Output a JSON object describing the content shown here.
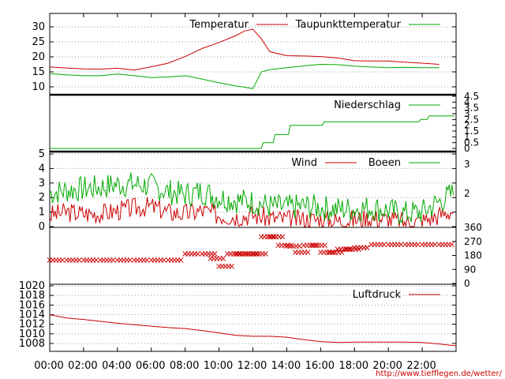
{
  "chart_data": [
    {
      "type": "line",
      "panel": "temperature",
      "ylim": [
        7.5,
        32
      ],
      "yticks": [
        "10",
        "15",
        "20",
        "25",
        "30"
      ],
      "grid": true,
      "legend_position": "top",
      "series": [
        {
          "name": "Temperatur",
          "color": "#cc0000",
          "x": [
            0,
            1,
            2,
            3,
            4,
            5,
            6,
            7,
            8,
            9,
            10,
            11,
            11.5,
            12,
            12.5,
            13,
            14,
            15,
            16,
            17,
            18,
            19,
            20,
            21,
            22,
            23
          ],
          "values": [
            16.6,
            16.3,
            16.0,
            15.9,
            16.2,
            15.6,
            16.7,
            17.9,
            20.1,
            22.8,
            24.8,
            27.1,
            28.6,
            29.2,
            26.0,
            21.7,
            20.4,
            20.3,
            20.1,
            19.6,
            18.7,
            18.6,
            18.6,
            18.2,
            17.9,
            17.5
          ]
        },
        {
          "name": "Taupunkttemperatur",
          "color": "#00aa00",
          "x": [
            0,
            1,
            2,
            3,
            4,
            5,
            6,
            7,
            8,
            9,
            10,
            11,
            11.5,
            12,
            12.5,
            13,
            14,
            15,
            16,
            17,
            18,
            19,
            20,
            21,
            22,
            23
          ],
          "values": [
            14.4,
            14.0,
            13.7,
            13.7,
            14.3,
            13.7,
            13.1,
            13.3,
            13.7,
            12.6,
            11.4,
            10.3,
            9.9,
            9.4,
            15.0,
            15.7,
            16.4,
            17.0,
            17.5,
            17.4,
            16.9,
            16.6,
            16.4,
            16.5,
            16.4,
            16.4
          ]
        }
      ]
    },
    {
      "type": "line",
      "panel": "precipitation",
      "ylim": [
        0,
        4.5
      ],
      "yticks": [
        "0",
        "0.5",
        "1",
        "1.5",
        "2",
        "2.5",
        "3",
        "3.5",
        "4",
        "4.5"
      ],
      "legend_position": "top",
      "series": [
        {
          "name": "Niederschlag",
          "color": "#00aa00",
          "x": [
            0,
            12.1,
            12.5,
            12.6,
            13.2,
            13.3,
            14.1,
            14.2,
            16.1,
            16.2,
            21.8,
            21.9,
            22.3,
            22.4,
            23.9
          ],
          "values": [
            0,
            0,
            0,
            0.5,
            0.5,
            1.2,
            1.2,
            2.0,
            2.0,
            2.3,
            2.3,
            2.5,
            2.5,
            2.8,
            2.8
          ]
        }
      ]
    },
    {
      "type": "line",
      "panel": "wind",
      "ylim": [
        0,
        5
      ],
      "yticks": [
        "0",
        "1",
        "2",
        "3",
        "4",
        "5"
      ],
      "y2ticks": [
        "2",
        "3"
      ],
      "grid": true,
      "legend_position": "top",
      "series": [
        {
          "name": "Wind",
          "color": "#cc0000",
          "x": [
            0,
            1,
            2,
            3,
            4,
            5,
            6,
            7,
            8,
            9,
            10,
            11,
            12,
            13,
            14,
            15,
            16,
            17,
            18,
            19,
            20,
            21,
            22,
            23
          ],
          "values": [
            0.8,
            1.0,
            0.9,
            0.9,
            1.1,
            1.3,
            1.4,
            1.0,
            0.9,
            1.1,
            0.8,
            0.7,
            0.8,
            0.6,
            0.5,
            0.5,
            0.5,
            0.4,
            0.5,
            0.6,
            0.5,
            0.3,
            0.4,
            0.8
          ]
        },
        {
          "name": "Boeen",
          "color": "#00aa00",
          "x": [
            0,
            1,
            2,
            3,
            4,
            5,
            6,
            7,
            8,
            9,
            10,
            11,
            12,
            13,
            14,
            15,
            16,
            17,
            18,
            19,
            20,
            21,
            22,
            23
          ],
          "values": [
            2.3,
            2.5,
            2.6,
            2.7,
            2.9,
            2.9,
            2.8,
            2.4,
            2.2,
            2.4,
            2.0,
            1.8,
            1.7,
            1.4,
            1.3,
            1.4,
            1.3,
            1.2,
            1.2,
            1.3,
            1.1,
            0.9,
            1.0,
            1.7
          ]
        }
      ]
    },
    {
      "type": "scatter",
      "panel": "wind-direction",
      "ylim": [
        0,
        360
      ],
      "y2ticks": [
        "0",
        "90",
        "180",
        "270",
        "360"
      ],
      "series": [
        {
          "name": "",
          "color": "#cc0000",
          "x": [
            0,
            1,
            2,
            3,
            4,
            5,
            6,
            7,
            8,
            9,
            9.5,
            10,
            10.5,
            11,
            11.5,
            12,
            12.5,
            13,
            13.5,
            14,
            14.5,
            15,
            15.5,
            16,
            16.5,
            17,
            17.5,
            18,
            19,
            20,
            21,
            22,
            23
          ],
          "values": [
            150,
            150,
            150,
            150,
            150,
            150,
            150,
            150,
            190,
            190,
            160,
            110,
            190,
            190,
            190,
            190,
            300,
            300,
            245,
            240,
            200,
            245,
            245,
            200,
            200,
            220,
            220,
            230,
            250,
            250,
            250,
            250,
            250
          ]
        }
      ]
    },
    {
      "type": "line",
      "panel": "pressure",
      "ylim": [
        1006,
        1020
      ],
      "yticks": [
        "1008",
        "1010",
        "1012",
        "1014",
        "1016",
        "1018",
        "1020"
      ],
      "grid": true,
      "legend_position": "top",
      "series": [
        {
          "name": "Luftdruck",
          "color": "#cc0000",
          "x": [
            0,
            1,
            2,
            3,
            4,
            5,
            6,
            7,
            8,
            9,
            10,
            11,
            12,
            13,
            14,
            15,
            16,
            17,
            18,
            19,
            20,
            21,
            22,
            23,
            24
          ],
          "values": [
            1014.0,
            1013.3,
            1013.0,
            1012.6,
            1012.2,
            1011.9,
            1011.6,
            1011.3,
            1011.1,
            1010.7,
            1010.2,
            1009.7,
            1009.5,
            1009.5,
            1009.3,
            1008.8,
            1008.4,
            1008.2,
            1008.3,
            1008.3,
            1008.3,
            1008.3,
            1008.2,
            1007.9,
            1007.5
          ]
        }
      ]
    }
  ],
  "xticks": [
    "00:00",
    "02:00",
    "04:00",
    "06:00",
    "08:00",
    "10:00",
    "12:00",
    "14:00",
    "16:00",
    "18:00",
    "20:00",
    "22:00"
  ],
  "source_url": "http://www.tiefflegen.de/wetter/"
}
